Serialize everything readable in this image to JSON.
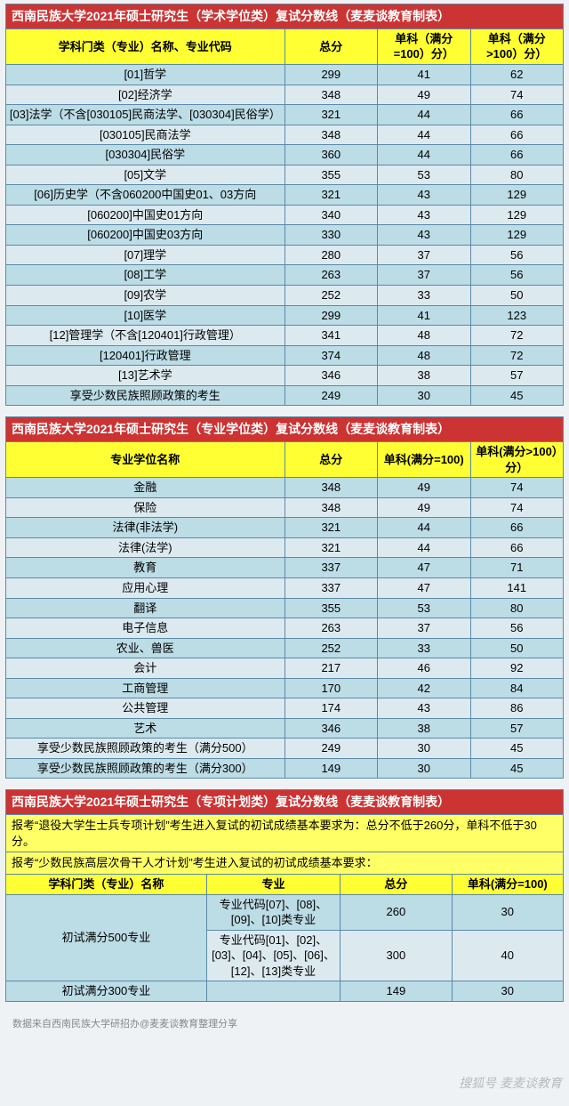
{
  "colors": {
    "title_bg": "#cc3333",
    "title_fg": "#ffffff",
    "header_bg": "#ffff33",
    "stripe_a": "#bcdce6",
    "stripe_b": "#dceaf0",
    "border": "#5b8aa8",
    "note_bg": "#ffff66"
  },
  "table1": {
    "title": "西南民族大学2021年硕士研究生（学术学位类）复试分数线（麦麦谈教育制表）",
    "headers": [
      "学科门类（专业）名称、专业代码",
      "总分",
      "单科（满分=100）分）",
      "单科（满分>100）分）"
    ],
    "rows": [
      [
        "[01]哲学",
        "299",
        "41",
        "62"
      ],
      [
        "[02]经济学",
        "348",
        "49",
        "74"
      ],
      [
        "[03]法学（不含[030105]民商法学、[030304]民俗学）",
        "321",
        "44",
        "66"
      ],
      [
        "[030105]民商法学",
        "348",
        "44",
        "66"
      ],
      [
        "[030304]民俗学",
        "360",
        "44",
        "66"
      ],
      [
        "[05]文学",
        "355",
        "53",
        "80"
      ],
      [
        "[06]历史学（不含060200中国史01、03方向",
        "321",
        "43",
        "129"
      ],
      [
        "[060200]中国史01方向",
        "340",
        "43",
        "129"
      ],
      [
        "[060200]中国史03方向",
        "330",
        "43",
        "129"
      ],
      [
        "[07]理学",
        "280",
        "37",
        "56"
      ],
      [
        "[08]工学",
        "263",
        "37",
        "56"
      ],
      [
        "[09]农学",
        "252",
        "33",
        "50"
      ],
      [
        "[10]医学",
        "299",
        "41",
        "123"
      ],
      [
        "[12]管理学（不含[120401]行政管理）",
        "341",
        "48",
        "72"
      ],
      [
        "[120401]行政管理",
        "374",
        "48",
        "72"
      ],
      [
        "[13]艺术学",
        "346",
        "38",
        "57"
      ],
      [
        "享受少数民族照顾政策的考生",
        "249",
        "30",
        "45"
      ]
    ]
  },
  "table2": {
    "title": "西南民族大学2021年硕士研究生（专业学位类）复试分数线（麦麦谈教育制表）",
    "headers": [
      "专业学位名称",
      "总分",
      "单科(满分=100)",
      "单科(满分>100）分）"
    ],
    "rows": [
      [
        "金融",
        "348",
        "49",
        "74"
      ],
      [
        "保险",
        "348",
        "49",
        "74"
      ],
      [
        "法律(非法学)",
        "321",
        "44",
        "66"
      ],
      [
        "法律(法学)",
        "321",
        "44",
        "66"
      ],
      [
        "教育",
        "337",
        "47",
        "71"
      ],
      [
        "应用心理",
        "337",
        "47",
        "141"
      ],
      [
        "翻译",
        "355",
        "53",
        "80"
      ],
      [
        "电子信息",
        "263",
        "37",
        "56"
      ],
      [
        "农业、兽医",
        "252",
        "33",
        "50"
      ],
      [
        "会计",
        "217",
        "46",
        "92"
      ],
      [
        "工商管理",
        "170",
        "42",
        "84"
      ],
      [
        "公共管理",
        "174",
        "43",
        "86"
      ],
      [
        "艺术",
        "346",
        "38",
        "57"
      ],
      [
        "享受少数民族照顾政策的考生（满分500）",
        "249",
        "30",
        "45"
      ],
      [
        "享受少数民族照顾政策的考生（满分300）",
        "149",
        "30",
        "45"
      ]
    ]
  },
  "table3": {
    "title": "西南民族大学2021年硕士研究生（专项计划类）复试分数线（麦麦谈教育制表）",
    "note1": "报考“退役大学生士兵专项计划”考生进入复试的初试成绩基本要求为：总分不低于260分，单科不低于30分。",
    "note2": "报考“少数民族高层次骨干人才计划”考生进入复试的初试成绩基本要求：",
    "headers": [
      "学科门类（专业）名称",
      "专业",
      "总分",
      "单科(满分=100)"
    ],
    "groups": [
      {
        "name": "初试满分500专业",
        "items": [
          {
            "prof": "专业代码[07]、[08]、[09]、[10]类专业",
            "total": "260",
            "sub": "30"
          },
          {
            "prof": "专业代码[01]、[02]、[03]、[04]、[05]、[06]、[12]、[13]类专业",
            "total": "300",
            "sub": "40"
          }
        ]
      },
      {
        "name": "初试满分300专业",
        "items": [
          {
            "prof": "",
            "total": "149",
            "sub": "30"
          }
        ]
      }
    ]
  },
  "footer": "数据来自西南民族大学研招办@麦麦谈教育整理分享",
  "watermark": "搜狐号 麦麦谈教育"
}
